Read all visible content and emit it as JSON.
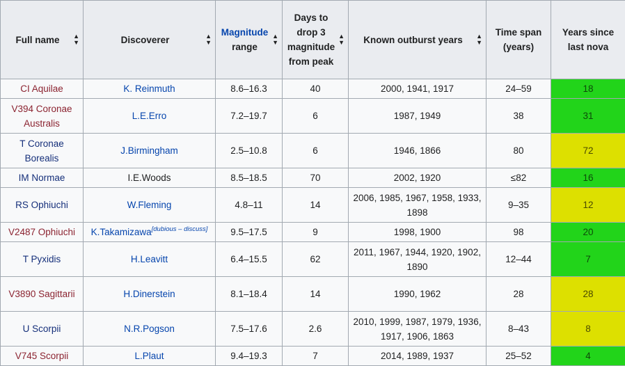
{
  "headers": [
    {
      "label": "Full name"
    },
    {
      "label": "Discoverer"
    },
    {
      "link": "Magnitude",
      "label": "range"
    },
    {
      "label": "Days to drop 3 magnitude from peak"
    },
    {
      "label": "Known outburst years"
    },
    {
      "label": "Time span (years)"
    },
    {
      "label": "Years since last nova"
    }
  ],
  "sort_icon": "sort-arrows-icon",
  "colors": {
    "green": "#22d41a",
    "yellow": "#dde000",
    "link": "#0645ad"
  },
  "rows": [
    {
      "name": "CI Aquilae",
      "name_color": "red",
      "discoverer": "K. Reinmuth",
      "disc_link": true,
      "magnitude": "8.6–16.3",
      "days": "40",
      "years": "2000, 1941, 1917",
      "span": "24–59",
      "since": "18",
      "since_color": "green"
    },
    {
      "name": "V394 Coronae Australis",
      "name_color": "red",
      "discoverer": "L.E.Erro",
      "disc_link": true,
      "magnitude": "7.2–19.7",
      "days": "6",
      "years": "1987, 1949",
      "span": "38",
      "since": "31",
      "since_color": "green"
    },
    {
      "name": "T Coronae Borealis",
      "name_color": "blue",
      "discoverer": "J.Birmingham",
      "disc_link": true,
      "magnitude": "2.5–10.8",
      "days": "6",
      "years": "1946, 1866",
      "span": "80",
      "since": "72",
      "since_color": "yellow"
    },
    {
      "name": "IM Normae",
      "name_color": "blue",
      "discoverer": "I.E.Woods",
      "disc_link": false,
      "magnitude": "8.5–18.5",
      "days": "70",
      "years": "2002, 1920",
      "span": "≤82",
      "since": "16",
      "since_color": "green"
    },
    {
      "name": "RS Ophiuchi",
      "name_color": "blue",
      "discoverer": "W.Fleming",
      "disc_link": true,
      "magnitude": "4.8–11",
      "days": "14",
      "years": "2006, 1985, 1967, 1958, 1933, 1898",
      "span": "9–35",
      "since": "12",
      "since_color": "yellow"
    },
    {
      "name": "V2487 Ophiuchi",
      "name_color": "red",
      "discoverer": "K.Takamizawa",
      "disc_link": true,
      "note": "dubious – discuss",
      "magnitude": "9.5–17.5",
      "days": "9",
      "years": "1998, 1900",
      "span": "98",
      "since": "20",
      "since_color": "green"
    },
    {
      "name": "T Pyxidis",
      "name_color": "blue",
      "discoverer": "H.Leavitt",
      "disc_link": true,
      "magnitude": "6.4–15.5",
      "days": "62",
      "years": "2011, 1967, 1944, 1920, 1902, 1890",
      "span": "12–44",
      "since": "7",
      "since_color": "green"
    },
    {
      "name": "V3890 Sagittarii",
      "name_color": "red",
      "discoverer": "H.Dinerstein",
      "disc_link": true,
      "magnitude": "8.1–18.4",
      "days": "14",
      "years": "1990, 1962",
      "span": "28",
      "since": "28",
      "since_color": "yellow"
    },
    {
      "name": "U Scorpii",
      "name_color": "blue",
      "discoverer": "N.R.Pogson",
      "disc_link": true,
      "magnitude": "7.5–17.6",
      "days": "2.6",
      "years": "2010, 1999, 1987, 1979, 1936, 1917, 1906, 1863",
      "span": "8–43",
      "since": "8",
      "since_color": "yellow"
    },
    {
      "name": "V745 Scorpii",
      "name_color": "red",
      "discoverer": "L.Plaut",
      "disc_link": true,
      "magnitude": "9.4–19.3",
      "days": "7",
      "years": "2014, 1989, 1937",
      "span": "25–52",
      "since": "4",
      "since_color": "green"
    }
  ]
}
